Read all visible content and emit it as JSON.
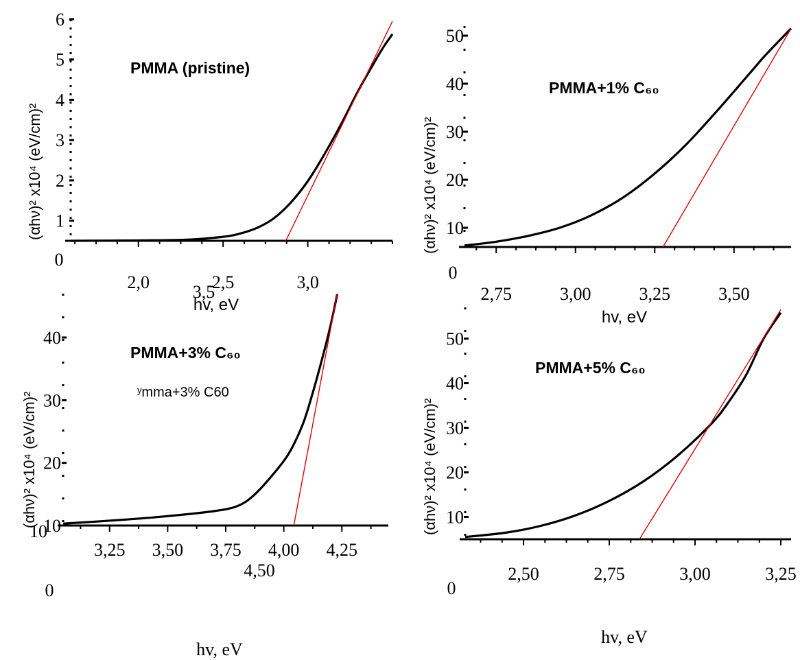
{
  "chart_data": [
    {
      "type": "line",
      "title": "PMMA (pristine)",
      "xlabel": "hv, eV",
      "ylabel": "(αhν)² x10⁴ (eV/cm)²",
      "xlim": [
        1.6,
        3.5
      ],
      "ylim": [
        0.5,
        6
      ],
      "x_tick_labels": [
        "2,0",
        "2,5",
        "3,0"
      ],
      "x_tick_values": [
        2.0,
        2.5,
        3.0
      ],
      "x_extra_labels": [
        "3,5"
      ],
      "y_tick_labels": [
        "1",
        "2",
        "3",
        "4",
        "5",
        "6"
      ],
      "y_tick_values": [
        1,
        2,
        3,
        4,
        5,
        6
      ],
      "y_extra_labels": [
        "0"
      ],
      "series": [
        {
          "x": [
            1.6,
            2.0,
            2.3,
            2.5,
            2.6,
            2.7,
            2.8,
            2.9,
            3.0,
            3.1,
            3.2,
            3.3,
            3.4,
            3.45,
            3.5
          ],
          "y": [
            0.5,
            0.51,
            0.53,
            0.6,
            0.68,
            0.82,
            1.06,
            1.45,
            1.98,
            2.66,
            3.42,
            4.24,
            4.98,
            5.33,
            5.63
          ],
          "color": "#000000"
        },
        {
          "x": [
            2.87,
            3.5
          ],
          "y": [
            0.5,
            5.95
          ],
          "color": "#e00000"
        }
      ]
    },
    {
      "type": "line",
      "title": "PMMA+1% C₆₀",
      "xlabel": "hv, eV",
      "ylabel": "(αhν)² x10⁴ (eV/cm)²",
      "xlim": [
        2.65,
        3.68
      ],
      "ylim": [
        6,
        52
      ],
      "x_tick_labels": [
        "2,75",
        "3,00",
        "3,25",
        "3,50"
      ],
      "x_tick_values": [
        2.75,
        3.0,
        3.25,
        3.5
      ],
      "y_tick_labels": [
        "10",
        "20",
        "30",
        "40",
        "50"
      ],
      "y_tick_values": [
        10,
        20,
        30,
        40,
        50
      ],
      "y_extra_labels": [
        "0"
      ],
      "series": [
        {
          "x": [
            2.65,
            2.75,
            2.85,
            2.95,
            3.05,
            3.15,
            3.25,
            3.35,
            3.45,
            3.55,
            3.6,
            3.68
          ],
          "y": [
            6.3,
            7.1,
            8.3,
            10.0,
            12.6,
            16.3,
            21.3,
            27.4,
            34.6,
            42.2,
            46.0,
            51.5
          ],
          "color": "#000000"
        },
        {
          "x": [
            3.276,
            3.68
          ],
          "y": [
            6.0,
            51.5
          ],
          "color": "#e00000"
        }
      ]
    },
    {
      "type": "line",
      "title": "PMMA+3% C₆₀",
      "xlabel": "hv, eV",
      "ylabel": "(αhν)² x10⁴ (eV/cm)²",
      "xlim": [
        3.05,
        4.45
      ],
      "ylim": [
        10,
        47
      ],
      "x_tick_labels": [
        "3,25",
        "3,50",
        "3,75",
        "4,00",
        "4,25"
      ],
      "x_tick_values": [
        3.25,
        3.5,
        3.75,
        4.0,
        4.25
      ],
      "x_extra_labels": [
        "4,50"
      ],
      "y_tick_labels": [
        "10",
        "20",
        "30",
        "40"
      ],
      "y_tick_values": [
        10,
        20,
        30,
        40
      ],
      "y_extra_labels": [
        "0"
      ],
      "annotations": [
        "ʸmma+3% C60"
      ],
      "series": [
        {
          "x": [
            3.05,
            3.3,
            3.5,
            3.7,
            3.8,
            3.87,
            3.95,
            4.02,
            4.08,
            4.12,
            4.16,
            4.2,
            4.23
          ],
          "y": [
            10.3,
            10.9,
            11.5,
            12.3,
            13.1,
            14.8,
            18.0,
            21.4,
            26.0,
            30.6,
            35.9,
            41.7,
            46.9
          ],
          "color": "#000000"
        },
        {
          "x": [
            4.043,
            4.23
          ],
          "y": [
            10.0,
            47.0
          ],
          "color": "#e00000"
        }
      ]
    },
    {
      "type": "line",
      "title": "PMMA+5% C₆₀",
      "xlabel": "hv, eV",
      "ylabel": "(αhν)² x10⁴ (eV/cm)²",
      "xlim": [
        2.33,
        3.28
      ],
      "ylim": [
        5,
        57
      ],
      "x_tick_labels": [
        "2,50",
        "2,75",
        "3,00",
        "3,25"
      ],
      "x_tick_values": [
        2.5,
        2.75,
        3.0,
        3.25
      ],
      "y_tick_labels": [
        "10",
        "20",
        "30",
        "40",
        "50"
      ],
      "y_tick_values": [
        10,
        20,
        30,
        40,
        50
      ],
      "y_extra_labels": [
        "0"
      ],
      "series": [
        {
          "x": [
            2.33,
            2.45,
            2.55,
            2.65,
            2.75,
            2.85,
            2.95,
            3.05,
            3.1,
            3.15,
            3.2,
            3.25
          ],
          "y": [
            5.5,
            6.5,
            8.0,
            10.3,
            13.6,
            18.0,
            23.8,
            31.1,
            36.0,
            42.0,
            50.0,
            55.8
          ],
          "color": "#000000"
        },
        {
          "x": [
            2.838,
            3.25
          ],
          "y": [
            5.0,
            56.5
          ],
          "color": "#e00000"
        }
      ]
    }
  ]
}
